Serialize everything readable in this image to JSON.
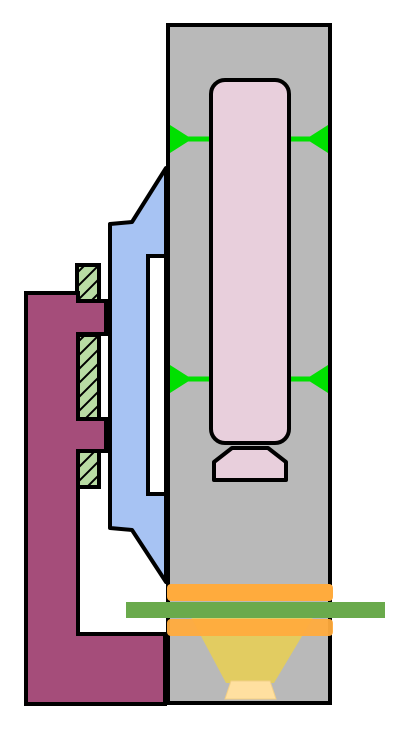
{
  "colors": {
    "background": "#ffffff",
    "housing": "#b9b9b9",
    "pink_component": "#e8cfdc",
    "green_connector": "#00e000",
    "blue_wedge": "#a7c3f3",
    "white_slot": "#ffffff",
    "purple_bracket": "#a54d7a",
    "hatched_insert": "#b9dca4",
    "orange_band": "#ffab3d",
    "green_bar": "#6aaa4c",
    "light_cone": "#f1d23f",
    "lamp": "#ffe0a0",
    "outline": "#000000"
  }
}
